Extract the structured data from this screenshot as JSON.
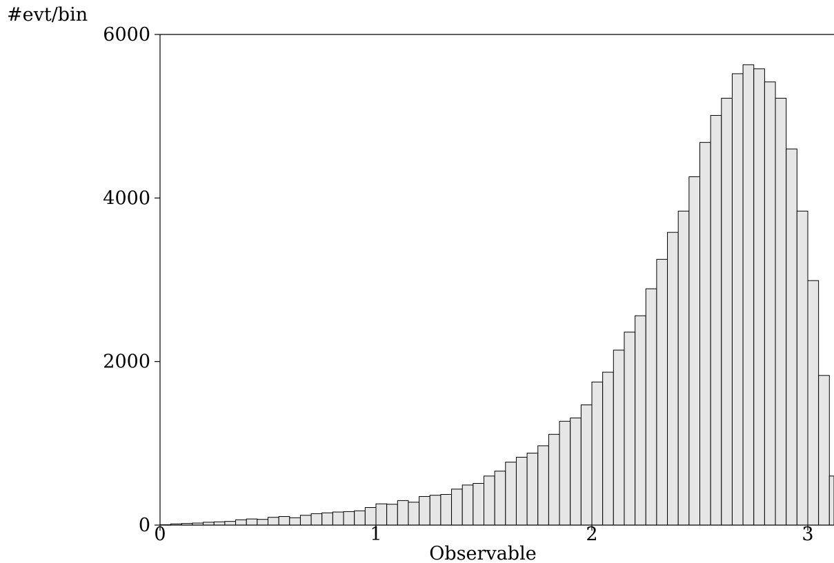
{
  "chart_data": {
    "type": "bar",
    "title": "",
    "xlabel": "Observable",
    "ylabel": "#evt/bin",
    "xlim": [
      0,
      3.1
    ],
    "ylim": [
      0,
      6000
    ],
    "bin_width": 0.05,
    "x_ticks": [
      "0",
      "1",
      "2",
      "3"
    ],
    "y_ticks": [
      "0",
      "2000",
      "4000",
      "6000"
    ],
    "bar_color": "#e6e6e6",
    "values": [
      5,
      15,
      20,
      25,
      35,
      40,
      45,
      65,
      75,
      70,
      95,
      105,
      90,
      120,
      140,
      150,
      160,
      165,
      175,
      215,
      260,
      255,
      300,
      280,
      350,
      365,
      375,
      440,
      490,
      510,
      600,
      660,
      770,
      830,
      880,
      970,
      1110,
      1270,
      1310,
      1470,
      1750,
      1870,
      2140,
      2360,
      2560,
      2890,
      3250,
      3580,
      3840,
      4260,
      4680,
      5010,
      5220,
      5520,
      5630,
      5580,
      5420,
      5220,
      4600,
      3840,
      2990,
      1830,
      600
    ]
  }
}
